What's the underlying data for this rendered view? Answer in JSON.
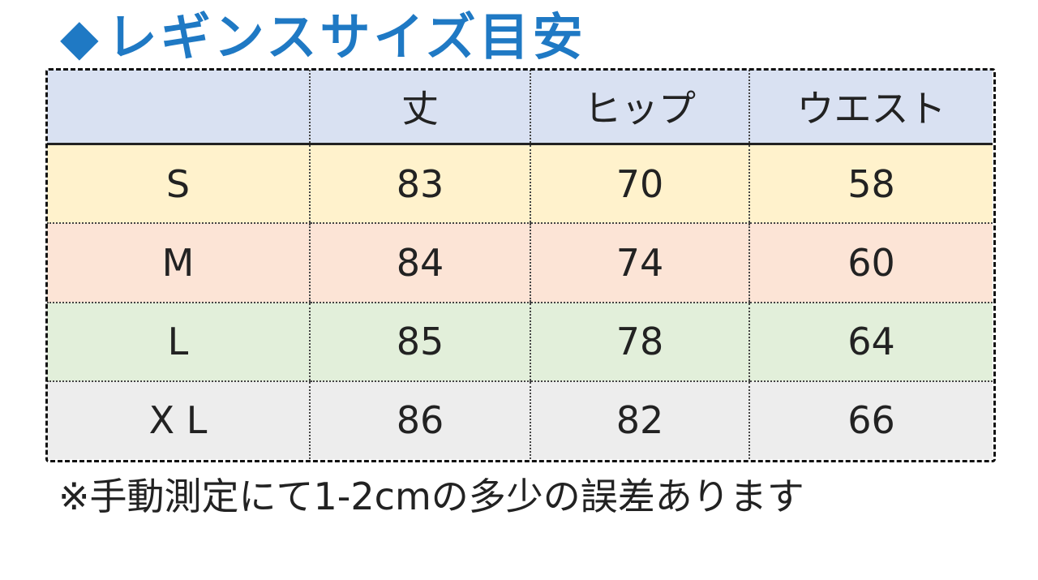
{
  "title": {
    "icon": "diamond-icon",
    "icon_glyph": "◆",
    "text": "レギンスサイズ目安",
    "color": "#1f79c4"
  },
  "table": {
    "headers": [
      "",
      "丈",
      "ヒップ",
      "ウエスト"
    ],
    "header_color": "#d9e1f2",
    "rows": [
      {
        "size": "S",
        "values": [
          "83",
          "70",
          "58"
        ],
        "color": "#fff2cc"
      },
      {
        "size": "M",
        "values": [
          "84",
          "74",
          "60"
        ],
        "color": "#fce4d6"
      },
      {
        "size": "L",
        "values": [
          "85",
          "78",
          "64"
        ],
        "color": "#e2efda"
      },
      {
        "size": "X L",
        "values": [
          "86",
          "82",
          "66"
        ],
        "color": "#ededed"
      }
    ]
  },
  "note": "※手動測定にて1-2cmの多少の誤差あります"
}
